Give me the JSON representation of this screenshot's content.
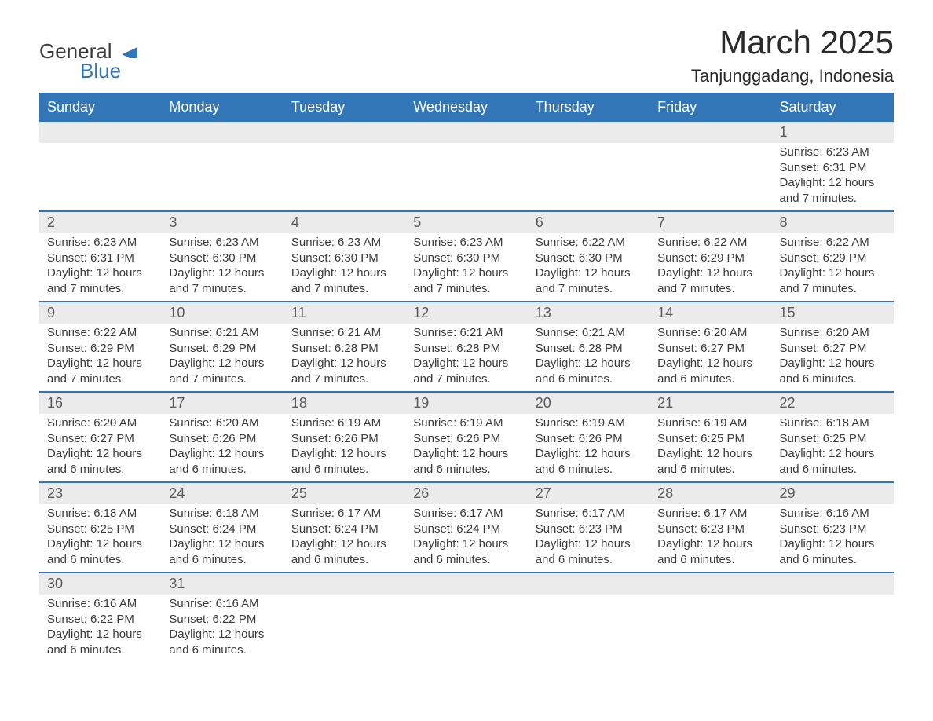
{
  "logo": {
    "word1": "General",
    "word2": "Blue",
    "shape_color": "#3376b8",
    "text_color_1": "#3a3a3a",
    "text_color_2": "#3376b8"
  },
  "title": {
    "month_year": "March 2025",
    "location": "Tanjunggadang, Indonesia",
    "font_size_title": 42,
    "font_size_location": 22,
    "color": "#2a2a2a"
  },
  "colors": {
    "header_bg": "#3376b8",
    "header_text": "#ffffff",
    "daynum_bg": "#ebebeb",
    "daynum_text": "#5a5a5a",
    "detail_text": "#3a3a3a",
    "row_border": "#3376b8",
    "page_bg": "#ffffff"
  },
  "days_of_week": [
    "Sunday",
    "Monday",
    "Tuesday",
    "Wednesday",
    "Thursday",
    "Friday",
    "Saturday"
  ],
  "weeks": [
    [
      null,
      null,
      null,
      null,
      null,
      null,
      {
        "n": "1",
        "sunrise": "6:23 AM",
        "sunset": "6:31 PM",
        "daylight": "12 hours and 7 minutes."
      }
    ],
    [
      {
        "n": "2",
        "sunrise": "6:23 AM",
        "sunset": "6:31 PM",
        "daylight": "12 hours and 7 minutes."
      },
      {
        "n": "3",
        "sunrise": "6:23 AM",
        "sunset": "6:30 PM",
        "daylight": "12 hours and 7 minutes."
      },
      {
        "n": "4",
        "sunrise": "6:23 AM",
        "sunset": "6:30 PM",
        "daylight": "12 hours and 7 minutes."
      },
      {
        "n": "5",
        "sunrise": "6:23 AM",
        "sunset": "6:30 PM",
        "daylight": "12 hours and 7 minutes."
      },
      {
        "n": "6",
        "sunrise": "6:22 AM",
        "sunset": "6:30 PM",
        "daylight": "12 hours and 7 minutes."
      },
      {
        "n": "7",
        "sunrise": "6:22 AM",
        "sunset": "6:29 PM",
        "daylight": "12 hours and 7 minutes."
      },
      {
        "n": "8",
        "sunrise": "6:22 AM",
        "sunset": "6:29 PM",
        "daylight": "12 hours and 7 minutes."
      }
    ],
    [
      {
        "n": "9",
        "sunrise": "6:22 AM",
        "sunset": "6:29 PM",
        "daylight": "12 hours and 7 minutes."
      },
      {
        "n": "10",
        "sunrise": "6:21 AM",
        "sunset": "6:29 PM",
        "daylight": "12 hours and 7 minutes."
      },
      {
        "n": "11",
        "sunrise": "6:21 AM",
        "sunset": "6:28 PM",
        "daylight": "12 hours and 7 minutes."
      },
      {
        "n": "12",
        "sunrise": "6:21 AM",
        "sunset": "6:28 PM",
        "daylight": "12 hours and 7 minutes."
      },
      {
        "n": "13",
        "sunrise": "6:21 AM",
        "sunset": "6:28 PM",
        "daylight": "12 hours and 6 minutes."
      },
      {
        "n": "14",
        "sunrise": "6:20 AM",
        "sunset": "6:27 PM",
        "daylight": "12 hours and 6 minutes."
      },
      {
        "n": "15",
        "sunrise": "6:20 AM",
        "sunset": "6:27 PM",
        "daylight": "12 hours and 6 minutes."
      }
    ],
    [
      {
        "n": "16",
        "sunrise": "6:20 AM",
        "sunset": "6:27 PM",
        "daylight": "12 hours and 6 minutes."
      },
      {
        "n": "17",
        "sunrise": "6:20 AM",
        "sunset": "6:26 PM",
        "daylight": "12 hours and 6 minutes."
      },
      {
        "n": "18",
        "sunrise": "6:19 AM",
        "sunset": "6:26 PM",
        "daylight": "12 hours and 6 minutes."
      },
      {
        "n": "19",
        "sunrise": "6:19 AM",
        "sunset": "6:26 PM",
        "daylight": "12 hours and 6 minutes."
      },
      {
        "n": "20",
        "sunrise": "6:19 AM",
        "sunset": "6:26 PM",
        "daylight": "12 hours and 6 minutes."
      },
      {
        "n": "21",
        "sunrise": "6:19 AM",
        "sunset": "6:25 PM",
        "daylight": "12 hours and 6 minutes."
      },
      {
        "n": "22",
        "sunrise": "6:18 AM",
        "sunset": "6:25 PM",
        "daylight": "12 hours and 6 minutes."
      }
    ],
    [
      {
        "n": "23",
        "sunrise": "6:18 AM",
        "sunset": "6:25 PM",
        "daylight": "12 hours and 6 minutes."
      },
      {
        "n": "24",
        "sunrise": "6:18 AM",
        "sunset": "6:24 PM",
        "daylight": "12 hours and 6 minutes."
      },
      {
        "n": "25",
        "sunrise": "6:17 AM",
        "sunset": "6:24 PM",
        "daylight": "12 hours and 6 minutes."
      },
      {
        "n": "26",
        "sunrise": "6:17 AM",
        "sunset": "6:24 PM",
        "daylight": "12 hours and 6 minutes."
      },
      {
        "n": "27",
        "sunrise": "6:17 AM",
        "sunset": "6:23 PM",
        "daylight": "12 hours and 6 minutes."
      },
      {
        "n": "28",
        "sunrise": "6:17 AM",
        "sunset": "6:23 PM",
        "daylight": "12 hours and 6 minutes."
      },
      {
        "n": "29",
        "sunrise": "6:16 AM",
        "sunset": "6:23 PM",
        "daylight": "12 hours and 6 minutes."
      }
    ],
    [
      {
        "n": "30",
        "sunrise": "6:16 AM",
        "sunset": "6:22 PM",
        "daylight": "12 hours and 6 minutes."
      },
      {
        "n": "31",
        "sunrise": "6:16 AM",
        "sunset": "6:22 PM",
        "daylight": "12 hours and 6 minutes."
      },
      null,
      null,
      null,
      null,
      null
    ]
  ],
  "labels": {
    "sunrise_prefix": "Sunrise: ",
    "sunset_prefix": "Sunset: ",
    "daylight_prefix": "Daylight: "
  }
}
